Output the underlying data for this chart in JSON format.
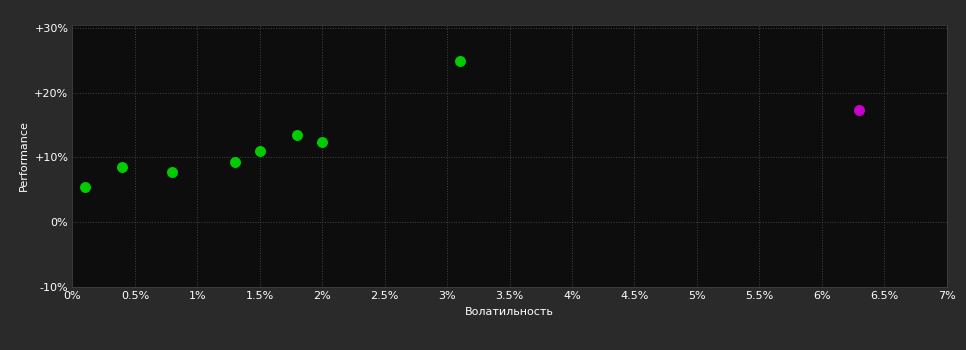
{
  "background_color": "#2a2a2a",
  "plot_bg_color": "#0d0d0d",
  "grid_color": "#444444",
  "text_color": "#ffffff",
  "xlabel": "Волатильность",
  "ylabel": "Performance",
  "xlim": [
    0,
    0.07
  ],
  "ylim": [
    -0.1,
    0.305
  ],
  "xticks": [
    0,
    0.005,
    0.01,
    0.015,
    0.02,
    0.025,
    0.03,
    0.035,
    0.04,
    0.045,
    0.05,
    0.055,
    0.06,
    0.065,
    0.07
  ],
  "xtick_labels": [
    "0%",
    "0.5%",
    "1%",
    "1.5%",
    "2%",
    "2.5%",
    "3%",
    "3.5%",
    "4%",
    "4.5%",
    "5%",
    "5.5%",
    "6%",
    "6.5%",
    "7%"
  ],
  "yticks": [
    -0.1,
    0.0,
    0.1,
    0.2,
    0.3
  ],
  "ytick_labels": [
    "-10%",
    "0%",
    "+10%",
    "+20%",
    "+30%"
  ],
  "green_points": [
    [
      0.001,
      0.055
    ],
    [
      0.004,
      0.085
    ],
    [
      0.008,
      0.078
    ],
    [
      0.013,
      0.093
    ],
    [
      0.015,
      0.11
    ],
    [
      0.018,
      0.135
    ],
    [
      0.02,
      0.123
    ],
    [
      0.031,
      0.248
    ]
  ],
  "magenta_points": [
    [
      0.063,
      0.173
    ]
  ],
  "green_color": "#00cc00",
  "magenta_color": "#cc00cc",
  "marker_size": 5,
  "axis_fontsize": 8,
  "tick_fontsize": 8
}
